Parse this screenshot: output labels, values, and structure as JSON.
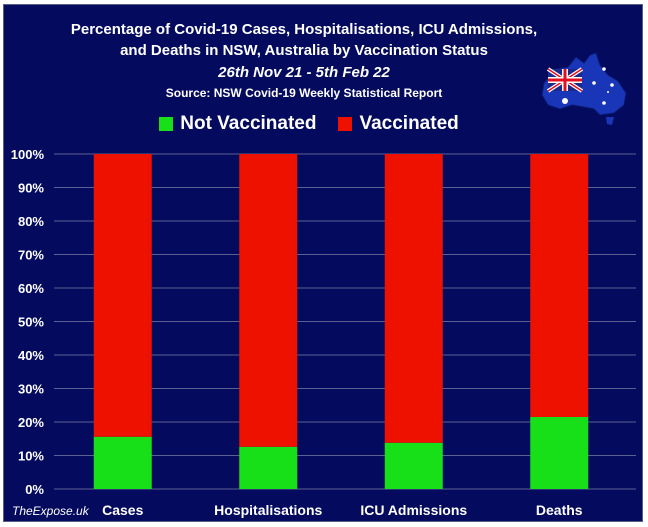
{
  "header": {
    "title_line1": "Percentage of Covid-19 Cases, Hospitalisations, ICU Admissions,",
    "title_line2": "and Deaths in NSW, Australia by Vaccination Status",
    "date_range": "26th Nov 21 - 5th Feb 22",
    "source": "Source: NSW Covid-19 Weekly Statistical Report"
  },
  "watermark": "TheExpose.uk",
  "colors": {
    "background": "#040a5e",
    "not_vaccinated": "#18e018",
    "vaccinated": "#ee1100",
    "grid": "#5a6090",
    "text": "#ffffff"
  },
  "logo": {
    "icon": "australia-map-flag-icon"
  },
  "chart_data": {
    "type": "bar",
    "stacked": true,
    "categories": [
      "Cases",
      "Hospitalisations",
      "ICU Admissions",
      "Deaths"
    ],
    "series": [
      {
        "name": "Not Vaccinated",
        "color": "#18e018",
        "values": [
          15.6,
          12.6,
          13.8,
          21.5
        ]
      },
      {
        "name": "Vaccinated",
        "color": "#ee1100",
        "values": [
          84.4,
          87.4,
          86.2,
          78.5
        ]
      }
    ],
    "yticks": [
      "0%",
      "10%",
      "20%",
      "30%",
      "40%",
      "50%",
      "60%",
      "70%",
      "80%",
      "90%",
      "100%"
    ],
    "ylim": [
      0,
      100
    ],
    "grid": true,
    "legend": "top-center"
  }
}
